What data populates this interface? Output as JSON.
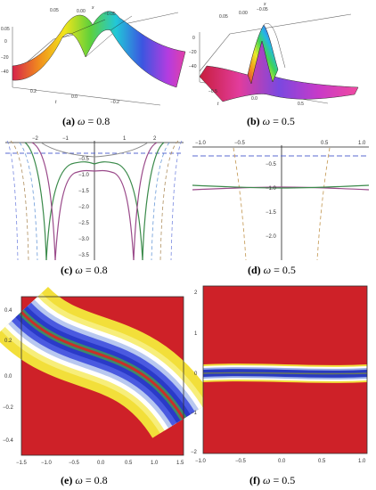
{
  "figures": [
    {
      "label": "(a)",
      "symbol": "ω",
      "equals": "= 0.8"
    },
    {
      "label": "(b)",
      "symbol": "ω",
      "equals": "= 0.5"
    },
    {
      "label": "(c)",
      "symbol": "ω",
      "equals": "= 0.8"
    },
    {
      "label": "(d)",
      "symbol": "ω",
      "equals": "= 0.5"
    },
    {
      "label": "(e)",
      "symbol": "ω",
      "equals": "= 0.8"
    },
    {
      "label": "(f)",
      "symbol": "ω",
      "equals": "= 0.5"
    }
  ],
  "chart_data": [
    {
      "type": "surface",
      "panel": "a",
      "axis_letters": {
        "x": "x",
        "t": "t"
      },
      "x_ticks": [
        "0.05",
        "0.00",
        "−0.05"
      ],
      "z_ticks": [
        "0.05",
        "0",
        "−20",
        "−40"
      ],
      "t_ticks": [
        "0.2",
        "0.0",
        "−0.2"
      ]
    },
    {
      "type": "surface",
      "panel": "b",
      "axis_letters": {
        "x": "x",
        "t": "t"
      },
      "x_ticks": [
        "0.05",
        "0.00",
        "−0.05"
      ],
      "z_ticks": [
        "0",
        "−20",
        "−40"
      ],
      "t_ticks": [
        "−0.5",
        "0.0",
        "0.5"
      ]
    },
    {
      "type": "line",
      "panel": "c",
      "x_ticks": [
        "−2",
        "−1",
        "1",
        "2"
      ],
      "y_ticks": [
        "−0.5",
        "−1.0",
        "−1.5",
        "−2.0",
        "−2.5",
        "−3.0",
        "−3.5"
      ],
      "xlim": [
        -2.7,
        2.7
      ],
      "ylim": [
        -3.8,
        0.1
      ]
    },
    {
      "type": "line",
      "panel": "d",
      "x_ticks": [
        "−1.0",
        "−0.5",
        "0.5",
        "1.0"
      ],
      "y_ticks": [
        "−0.5",
        "−1.0",
        "−1.5",
        "−2.0"
      ],
      "xlim": [
        -1.0,
        1.0
      ],
      "ylim": [
        -2.3,
        0.15
      ]
    },
    {
      "type": "heatmap",
      "panel": "e",
      "x_ticks": [
        "−1.5",
        "−1.0",
        "−0.5",
        "0.0",
        "0.5",
        "1.0",
        "1.5"
      ],
      "y_ticks": [
        "0.4",
        "0.2",
        "0.0",
        "−0.2",
        "−0.4"
      ],
      "xlim": [
        -1.5,
        1.5
      ],
      "ylim": [
        -0.5,
        0.5
      ]
    },
    {
      "type": "heatmap",
      "panel": "f",
      "x_ticks": [
        "−1.0",
        "−0.5",
        "0.0",
        "0.5",
        "1.0"
      ],
      "y_ticks": [
        "2",
        "1",
        "0",
        "−1",
        "−2"
      ],
      "xlim": [
        -1.0,
        1.0
      ],
      "ylim": [
        -2.1,
        2.1
      ]
    }
  ]
}
